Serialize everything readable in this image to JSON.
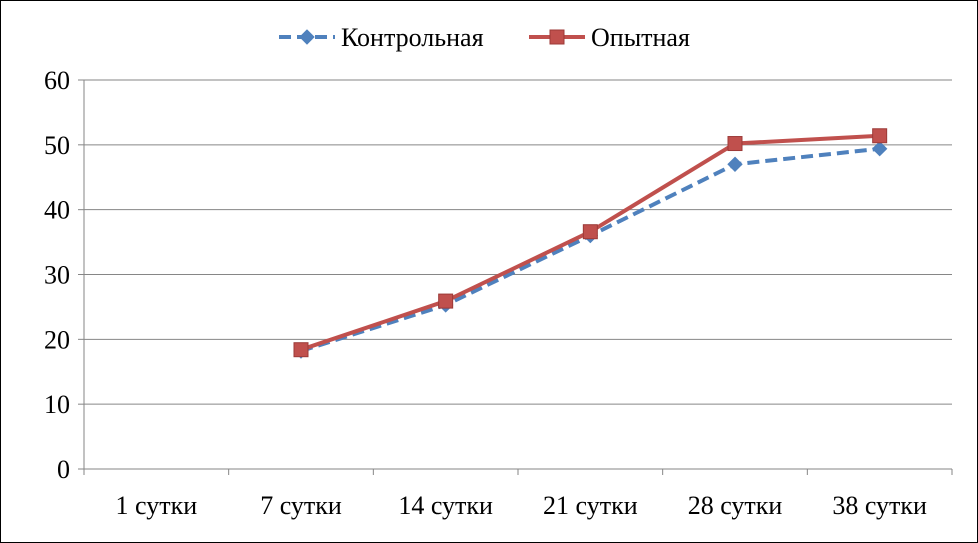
{
  "chart_data": {
    "type": "line",
    "categories": [
      "1 сутки",
      "7 сутки",
      "14 сутки",
      "21 сутки",
      "28 сутки",
      "38 сутки"
    ],
    "ylim": [
      0,
      60
    ],
    "yticks": [
      0,
      10,
      20,
      30,
      40,
      50,
      60
    ],
    "grid": true,
    "legend_position": "top",
    "series": [
      {
        "name": "Контрольная",
        "values": [
          null,
          18.2,
          25.3,
          36.0,
          47.0,
          49.4
        ],
        "color": "#4F81BD",
        "line_style": "dashed",
        "marker": "diamond"
      },
      {
        "name": "Опытная",
        "values": [
          null,
          18.4,
          25.9,
          36.6,
          50.2,
          51.4
        ],
        "color": "#C0504D",
        "line_style": "solid",
        "marker": "square"
      }
    ]
  }
}
